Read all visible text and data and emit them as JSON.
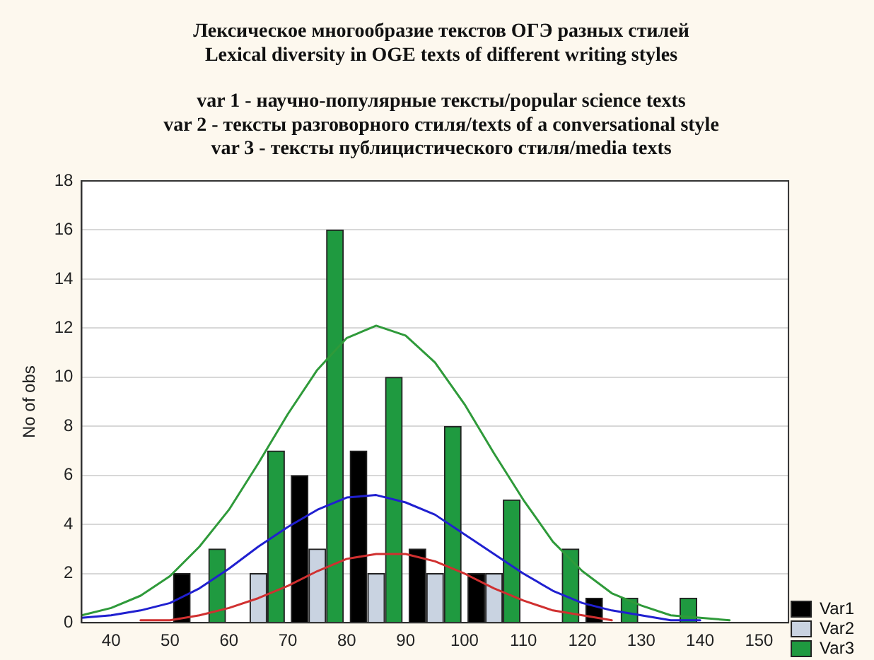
{
  "chart_data": {
    "type": "histogram",
    "title": "Лексическое многообразие текстов ОГЭ разных стилей\nLexical diversity in OGE texts of different writing styles",
    "subtitle": "var 1 - научно-популярные тексты/popular science texts\nvar 2 - тексты разговорного стиля/texts of a conversational style\nvar 3 - тексты публицистического стиля/media texts",
    "ylabel": "No of obs",
    "bins": [
      50,
      60,
      70,
      80,
      90,
      100,
      110,
      120,
      130,
      140
    ],
    "series": [
      {
        "name": "Var1",
        "color": "#000000",
        "values": [
          2,
          0,
          6,
          7,
          3,
          2,
          0,
          1,
          0
        ]
      },
      {
        "name": "Var2",
        "color": "#c9d3e1",
        "values": [
          0,
          2,
          3,
          2,
          2,
          2,
          0,
          0,
          0
        ]
      },
      {
        "name": "Var3",
        "color": "#1f9a40",
        "values": [
          3,
          7,
          16,
          10,
          8,
          5,
          3,
          1,
          1
        ]
      },
      {
        "type": "line",
        "color": "#2020d0",
        "x": [
          35,
          40,
          45,
          50,
          55,
          60,
          65,
          70,
          75,
          80,
          85,
          90,
          95,
          100,
          105,
          110,
          115,
          120,
          125,
          130,
          135,
          140
        ],
        "values": [
          0.2,
          0.3,
          0.5,
          0.8,
          1.4,
          2.2,
          3.1,
          3.9,
          4.6,
          5.1,
          5.2,
          4.9,
          4.4,
          3.6,
          2.8,
          2.0,
          1.3,
          0.8,
          0.5,
          0.3,
          0.1,
          0.1
        ]
      },
      {
        "type": "line",
        "color": "#d03030",
        "x": [
          45,
          50,
          55,
          60,
          65,
          70,
          75,
          80,
          85,
          90,
          95,
          100,
          105,
          110,
          115,
          120,
          125
        ],
        "values": [
          0.1,
          0.1,
          0.3,
          0.6,
          1.0,
          1.5,
          2.1,
          2.6,
          2.8,
          2.8,
          2.5,
          2.0,
          1.4,
          0.9,
          0.5,
          0.3,
          0.1
        ]
      },
      {
        "type": "line",
        "color": "#2f9a3a",
        "x": [
          35,
          40,
          45,
          50,
          55,
          60,
          65,
          70,
          75,
          80,
          85,
          90,
          95,
          100,
          105,
          110,
          115,
          120,
          125,
          130,
          135,
          140,
          145
        ],
        "values": [
          0.3,
          0.6,
          1.1,
          1.9,
          3.1,
          4.6,
          6.5,
          8.5,
          10.3,
          11.6,
          12.1,
          11.7,
          10.6,
          8.9,
          6.9,
          5.0,
          3.3,
          2.1,
          1.2,
          0.7,
          0.3,
          0.2,
          0.1
        ]
      }
    ],
    "xlim": [
      35,
      155
    ],
    "xticks": [
      40,
      50,
      60,
      70,
      80,
      90,
      100,
      110,
      120,
      130,
      140,
      150
    ],
    "ylim": [
      0,
      18
    ],
    "yticks": [
      0,
      2,
      4,
      6,
      8,
      10,
      12,
      14,
      16,
      18
    ],
    "grid": "y",
    "legend": "bottom right",
    "marker": "none"
  }
}
